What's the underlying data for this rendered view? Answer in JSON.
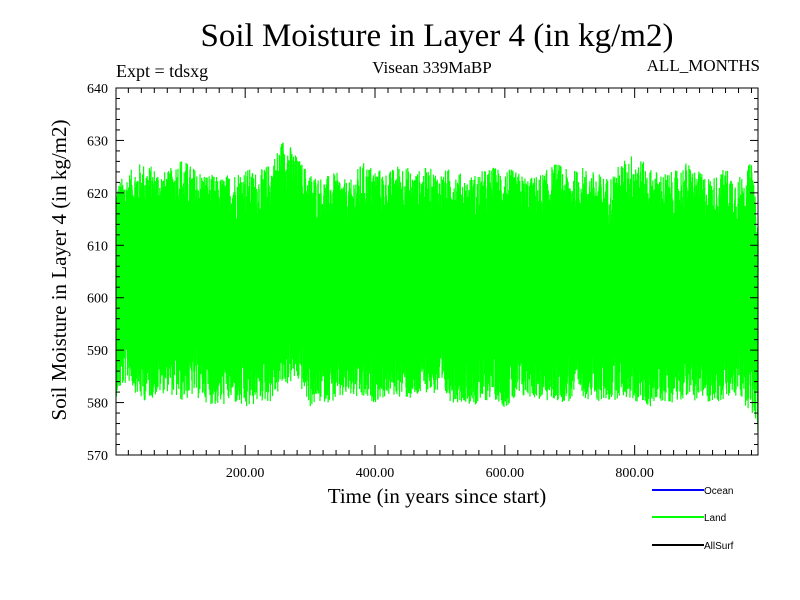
{
  "chart_data": {
    "type": "line",
    "title": "Soil Moisture in Layer 4 (in kg/m2)",
    "subtitle": "Visean 339MaBP",
    "expt_label": "Expt = tdsxg",
    "months_label": "ALL_MONTHS",
    "xlabel": "Time (in years since start)",
    "ylabel": "Soil Moisture in Layer 4 (in kg/m2)",
    "xlim": [
      1,
      990
    ],
    "ylim": [
      570,
      640
    ],
    "x_ticks": [
      200,
      400,
      600,
      800
    ],
    "x_tick_labels": [
      "200.00",
      "400.00",
      "600.00",
      "800.00"
    ],
    "y_ticks": [
      570,
      580,
      590,
      600,
      610,
      620,
      630,
      640
    ],
    "y_tick_labels": [
      "570",
      "580",
      "590",
      "600",
      "610",
      "620",
      "630",
      "640"
    ],
    "series": [
      {
        "name": "Ocean",
        "color": "#0000ff",
        "values": []
      },
      {
        "name": "Land",
        "color": "#00ff00",
        "description_stats": {
          "mean": 602,
          "min": 573,
          "max": 631.5
        },
        "x": [
          1,
          20,
          40,
          60,
          80,
          100,
          120,
          140,
          160,
          180,
          200,
          220,
          240,
          260,
          280,
          300,
          320,
          340,
          360,
          380,
          400,
          420,
          440,
          460,
          480,
          500,
          520,
          540,
          560,
          580,
          600,
          620,
          640,
          660,
          680,
          700,
          720,
          740,
          760,
          780,
          800,
          820,
          840,
          860,
          880,
          900,
          920,
          940,
          960,
          980,
          990
        ],
        "upper": [
          622,
          624,
          626,
          625,
          624,
          627,
          625,
          624,
          623,
          624,
          625,
          624,
          626,
          631,
          627,
          624,
          623,
          624,
          622,
          626,
          625,
          624,
          626,
          624,
          625,
          624,
          625,
          623,
          624,
          625,
          625,
          624,
          623,
          624,
          626,
          624,
          625,
          624,
          623,
          626,
          628,
          625,
          624,
          624,
          626,
          624,
          623,
          625,
          623,
          626,
          614
        ],
        "lower": [
          581,
          584,
          580,
          581,
          582,
          580,
          581,
          580,
          579,
          580,
          578,
          580,
          580,
          583,
          584,
          579,
          580,
          580,
          581,
          580,
          580,
          581,
          581,
          580,
          582,
          581,
          580,
          580,
          579,
          581,
          579,
          580,
          581,
          580,
          580,
          580,
          581,
          580,
          580,
          581,
          580,
          579,
          580,
          580,
          581,
          580,
          580,
          580,
          581,
          578,
          574
        ]
      },
      {
        "name": "AllSurf",
        "color": "#000000",
        "values": []
      }
    ],
    "legend_position": "bottom-right"
  }
}
